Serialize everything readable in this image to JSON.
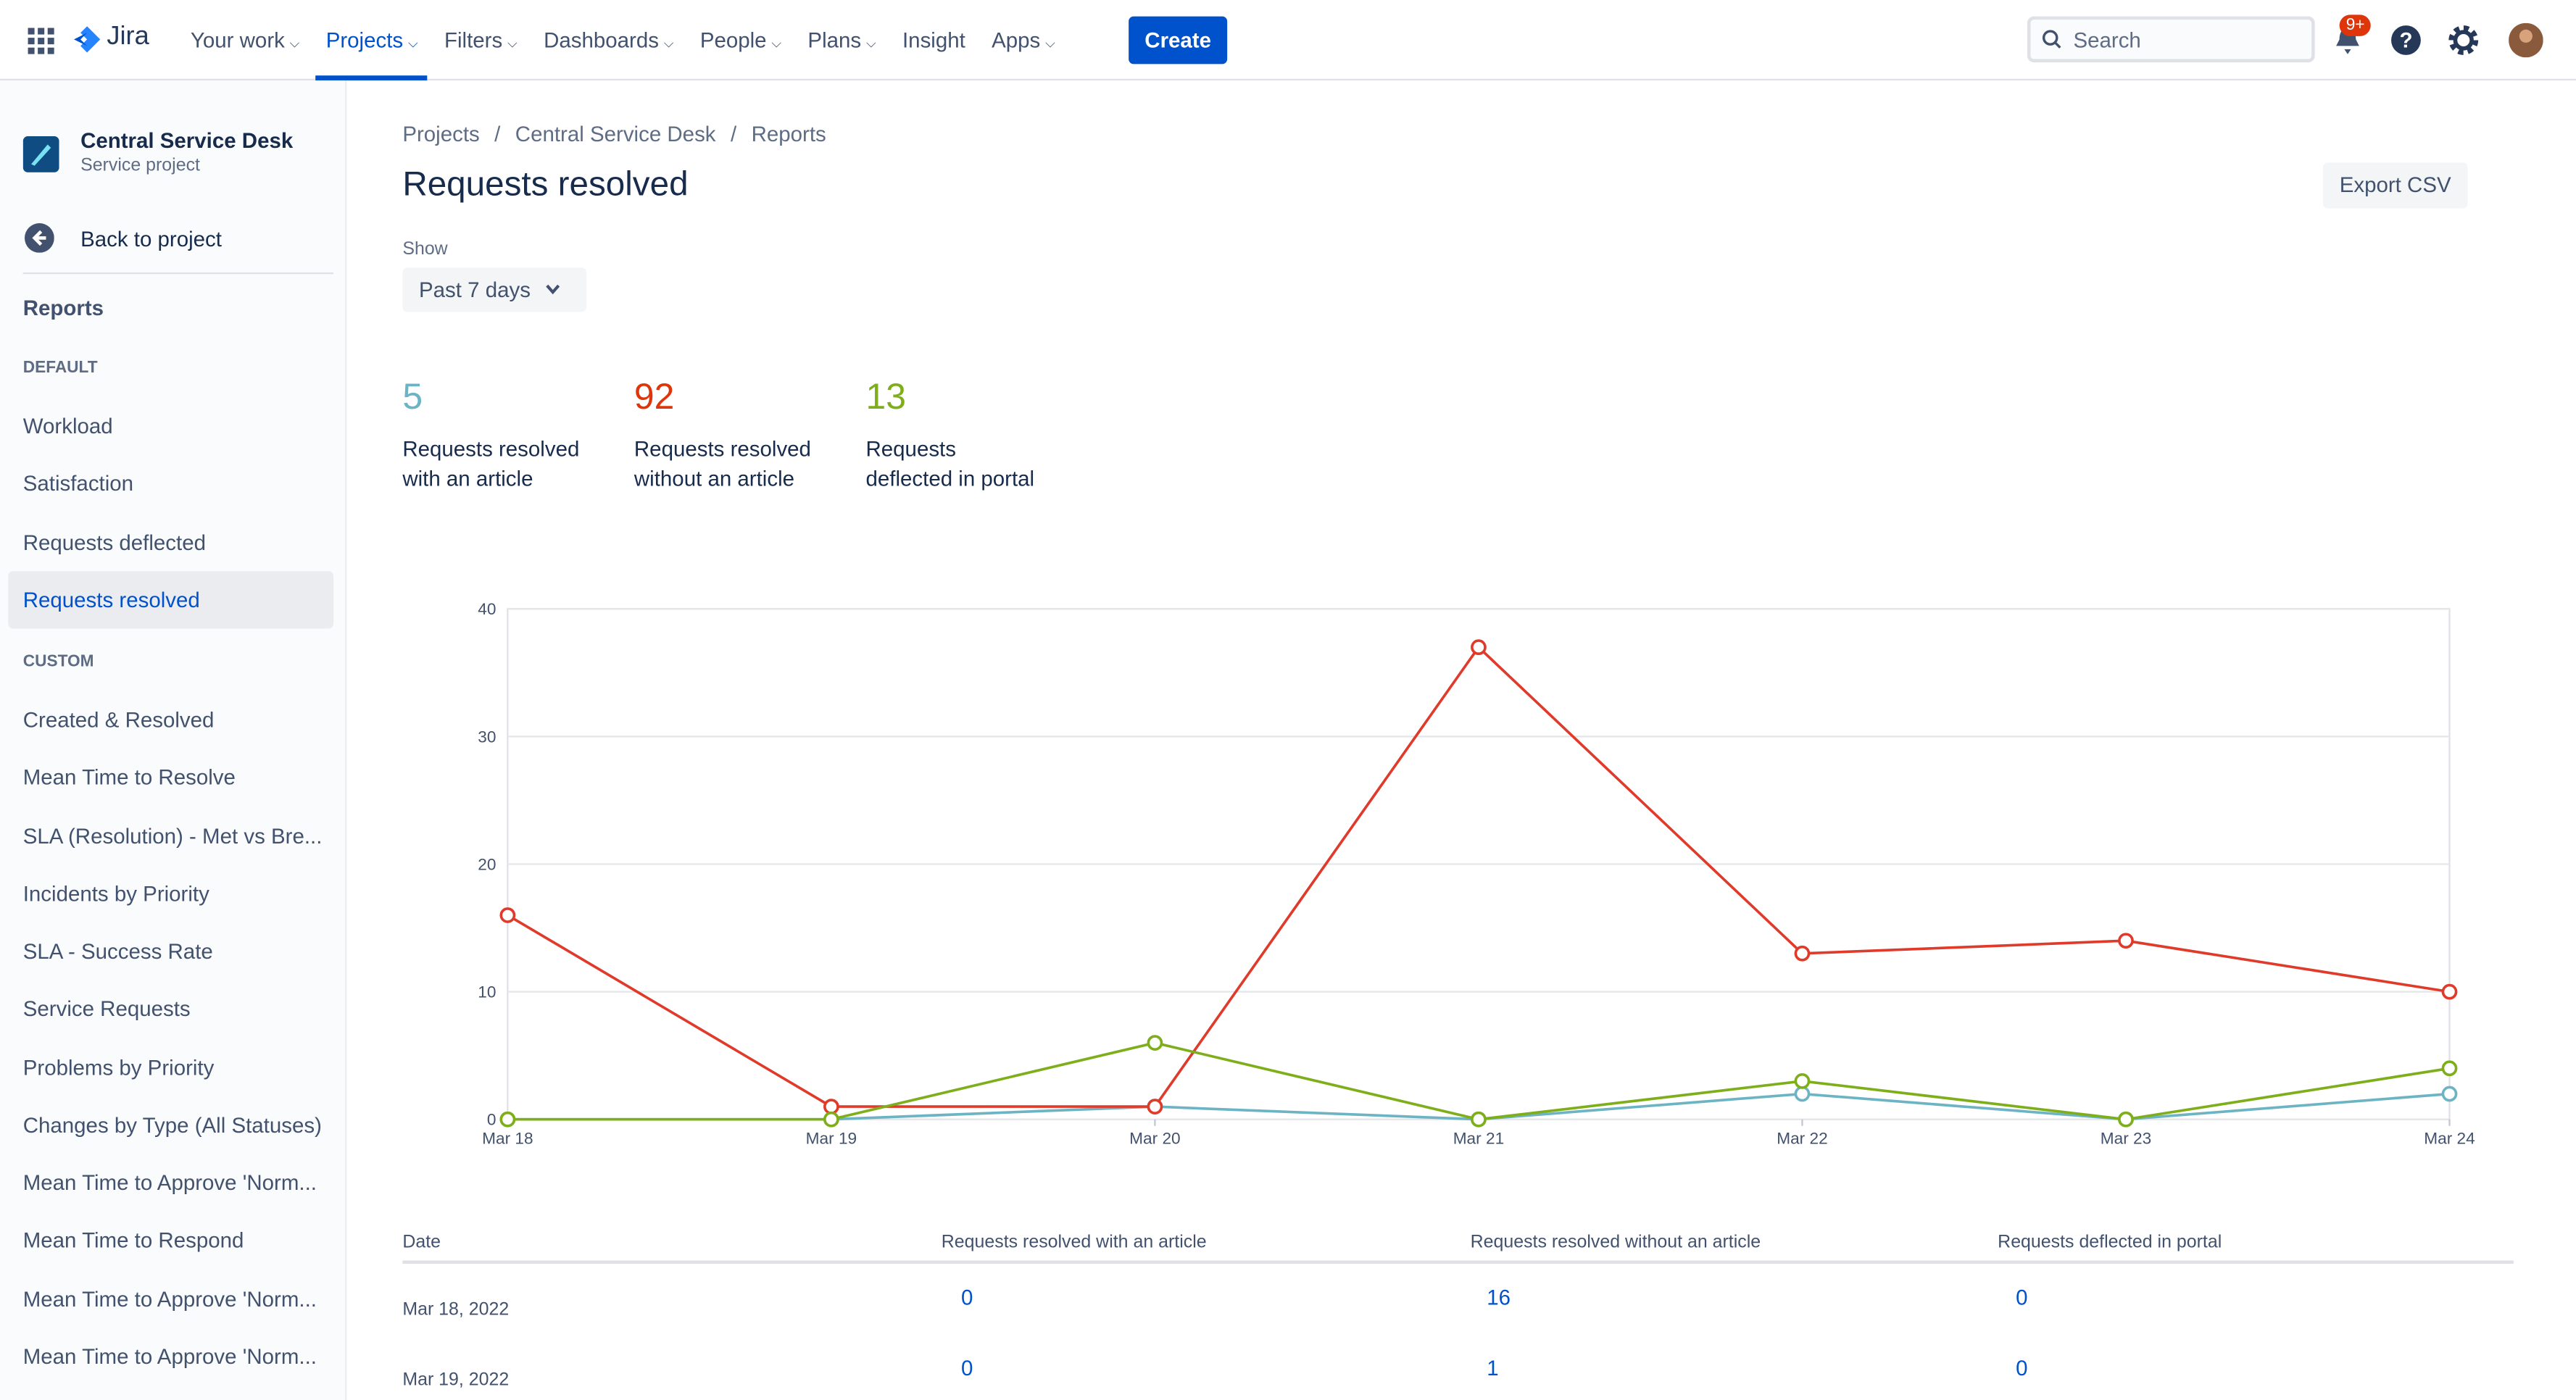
{
  "top_nav": {
    "product": "Jira",
    "items": [
      "Your work",
      "Projects",
      "Filters",
      "Dashboards",
      "People",
      "Plans",
      "Insight",
      "Apps"
    ],
    "create": "Create",
    "search_placeholder": "Search",
    "notification_badge": "9+"
  },
  "sidebar": {
    "project_name": "Central Service Desk",
    "project_type": "Service project",
    "back": "Back to project",
    "reports": "Reports",
    "sections": [
      {
        "heading": "DEFAULT",
        "items": [
          "Workload",
          "Satisfaction",
          "Requests deflected",
          "Requests resolved"
        ]
      },
      {
        "heading": "CUSTOM",
        "items": [
          "Created & Resolved",
          "Mean Time to Resolve",
          "SLA (Resolution) - Met vs Bre...",
          "Incidents by Priority",
          "SLA - Success Rate",
          "Service Requests",
          "Problems by Priority",
          "Changes by Type (All Statuses)",
          "Mean Time to Approve 'Norm...",
          "Mean Time to Respond",
          "Mean Time to Approve 'Norm...",
          "Mean Time to Approve 'Norm..."
        ]
      }
    ]
  },
  "breadcrumbs": [
    "Projects",
    "Central Service Desk",
    "Reports"
  ],
  "title": "Requests resolved",
  "export": "Export CSV",
  "show_label": "Show",
  "show_value": "Past 7 days",
  "summary": [
    {
      "value": 5,
      "label": "Requests resolved with an article",
      "color": "#6cb4c4"
    },
    {
      "value": 92,
      "label": "Requests resolved without an article",
      "color": "#de350b"
    },
    {
      "value": 13,
      "label": "Requests deflected in portal",
      "color": "#7fae1b"
    }
  ],
  "chart_data": {
    "type": "line",
    "categories": [
      "Mar 18",
      "Mar 19",
      "Mar 20",
      "Mar 21",
      "Mar 22",
      "Mar 23",
      "Mar 24"
    ],
    "series": [
      {
        "name": "Requests resolved with an article",
        "color": "#6cb4c4",
        "values": [
          0,
          0,
          1,
          0,
          2,
          0,
          2
        ]
      },
      {
        "name": "Requests resolved without an article",
        "color": "#e03a2b",
        "values": [
          16,
          1,
          1,
          37,
          13,
          14,
          10
        ]
      },
      {
        "name": "Requests deflected in portal",
        "color": "#7fae1b",
        "values": [
          0,
          0,
          6,
          0,
          3,
          0,
          4
        ]
      }
    ],
    "ylim": [
      0,
      40
    ],
    "yticks": [
      0,
      10,
      20,
      30,
      40
    ],
    "grid": true
  },
  "table": {
    "columns": [
      "Date",
      "Requests resolved with an article",
      "Requests resolved without an article",
      "Requests deflected in portal"
    ],
    "rows": [
      [
        "Mar 18, 2022",
        0,
        16,
        0
      ],
      [
        "Mar 19, 2022",
        0,
        1,
        0
      ]
    ]
  }
}
